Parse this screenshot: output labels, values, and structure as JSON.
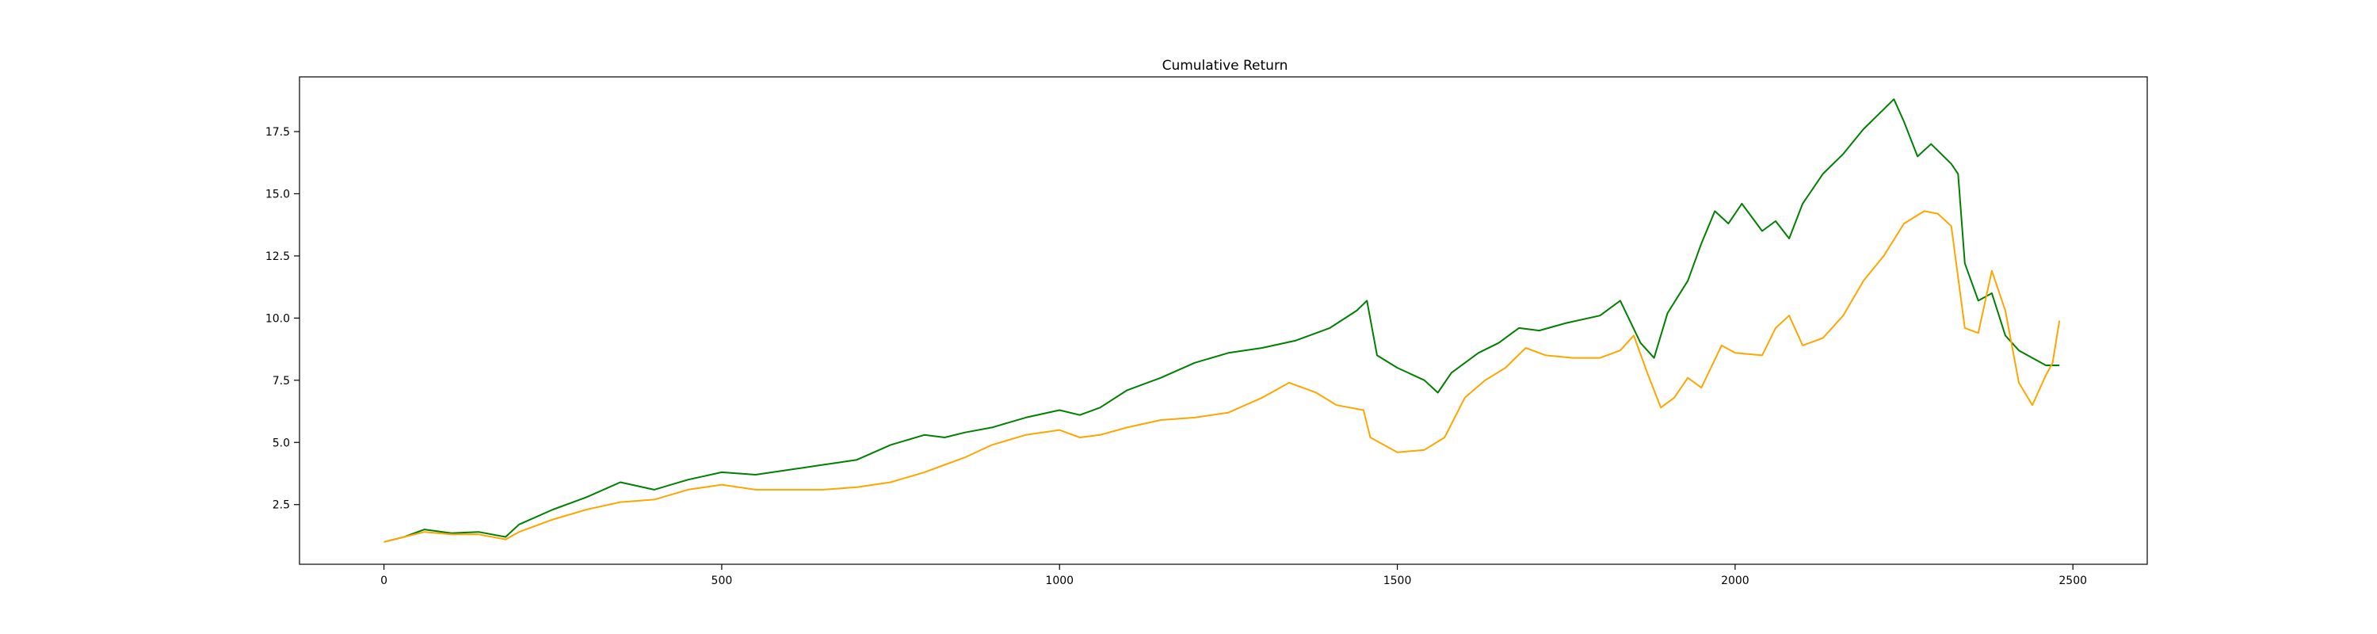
{
  "chart_data": {
    "type": "line",
    "title": "Cumulative Return",
    "xlabel": "",
    "ylabel": "",
    "xlim": [
      -125,
      2610
    ],
    "ylim": [
      0.1,
      19.7
    ],
    "xticks": [
      0,
      500,
      1000,
      1500,
      2000,
      2500
    ],
    "yticks": [
      2.5,
      5.0,
      7.5,
      10.0,
      12.5,
      15.0,
      17.5
    ],
    "ytick_labels": [
      "2.5",
      "5.0",
      "7.5",
      "10.0",
      "12.5",
      "15.0",
      "17.5"
    ],
    "grid": false,
    "legend": "none",
    "series": [
      {
        "color": "#008000",
        "points": [
          [
            0,
            1.0
          ],
          [
            30,
            1.2
          ],
          [
            60,
            1.5
          ],
          [
            100,
            1.35
          ],
          [
            140,
            1.4
          ],
          [
            180,
            1.2
          ],
          [
            200,
            1.7
          ],
          [
            250,
            2.3
          ],
          [
            300,
            2.8
          ],
          [
            350,
            3.4
          ],
          [
            400,
            3.1
          ],
          [
            450,
            3.5
          ],
          [
            500,
            3.8
          ],
          [
            550,
            3.7
          ],
          [
            600,
            3.9
          ],
          [
            650,
            4.1
          ],
          [
            700,
            4.3
          ],
          [
            750,
            4.9
          ],
          [
            800,
            5.3
          ],
          [
            830,
            5.2
          ],
          [
            860,
            5.4
          ],
          [
            900,
            5.6
          ],
          [
            950,
            6.0
          ],
          [
            1000,
            6.3
          ],
          [
            1030,
            6.1
          ],
          [
            1060,
            6.4
          ],
          [
            1100,
            7.1
          ],
          [
            1150,
            7.6
          ],
          [
            1200,
            8.2
          ],
          [
            1250,
            8.6
          ],
          [
            1300,
            8.8
          ],
          [
            1350,
            9.1
          ],
          [
            1400,
            9.6
          ],
          [
            1440,
            10.3
          ],
          [
            1455,
            10.7
          ],
          [
            1470,
            8.5
          ],
          [
            1500,
            8.0
          ],
          [
            1540,
            7.5
          ],
          [
            1560,
            7.0
          ],
          [
            1580,
            7.8
          ],
          [
            1620,
            8.6
          ],
          [
            1650,
            9.0
          ],
          [
            1680,
            9.6
          ],
          [
            1710,
            9.5
          ],
          [
            1750,
            9.8
          ],
          [
            1800,
            10.1
          ],
          [
            1830,
            10.7
          ],
          [
            1860,
            9.0
          ],
          [
            1880,
            8.4
          ],
          [
            1900,
            10.2
          ],
          [
            1930,
            11.5
          ],
          [
            1950,
            13.0
          ],
          [
            1970,
            14.3
          ],
          [
            1990,
            13.8
          ],
          [
            2010,
            14.6
          ],
          [
            2040,
            13.5
          ],
          [
            2060,
            13.9
          ],
          [
            2080,
            13.2
          ],
          [
            2100,
            14.6
          ],
          [
            2130,
            15.8
          ],
          [
            2160,
            16.6
          ],
          [
            2190,
            17.6
          ],
          [
            2220,
            18.4
          ],
          [
            2235,
            18.8
          ],
          [
            2250,
            17.9
          ],
          [
            2270,
            16.5
          ],
          [
            2290,
            17.0
          ],
          [
            2320,
            16.2
          ],
          [
            2330,
            15.8
          ],
          [
            2340,
            12.2
          ],
          [
            2360,
            10.7
          ],
          [
            2380,
            11.0
          ],
          [
            2400,
            9.3
          ],
          [
            2420,
            8.7
          ],
          [
            2440,
            8.4
          ],
          [
            2460,
            8.1
          ],
          [
            2480,
            8.1
          ]
        ]
      },
      {
        "color": "#ffa500",
        "points": [
          [
            0,
            1.0
          ],
          [
            30,
            1.2
          ],
          [
            60,
            1.4
          ],
          [
            100,
            1.3
          ],
          [
            140,
            1.3
          ],
          [
            180,
            1.1
          ],
          [
            200,
            1.4
          ],
          [
            250,
            1.9
          ],
          [
            300,
            2.3
          ],
          [
            350,
            2.6
          ],
          [
            400,
            2.7
          ],
          [
            450,
            3.1
          ],
          [
            500,
            3.3
          ],
          [
            550,
            3.1
          ],
          [
            600,
            3.1
          ],
          [
            650,
            3.1
          ],
          [
            700,
            3.2
          ],
          [
            750,
            3.4
          ],
          [
            800,
            3.8
          ],
          [
            830,
            4.1
          ],
          [
            860,
            4.4
          ],
          [
            900,
            4.9
          ],
          [
            950,
            5.3
          ],
          [
            1000,
            5.5
          ],
          [
            1030,
            5.2
          ],
          [
            1060,
            5.3
          ],
          [
            1100,
            5.6
          ],
          [
            1150,
            5.9
          ],
          [
            1200,
            6.0
          ],
          [
            1250,
            6.2
          ],
          [
            1300,
            6.8
          ],
          [
            1340,
            7.4
          ],
          [
            1380,
            7.0
          ],
          [
            1410,
            6.5
          ],
          [
            1450,
            6.3
          ],
          [
            1460,
            5.2
          ],
          [
            1500,
            4.6
          ],
          [
            1540,
            4.7
          ],
          [
            1570,
            5.2
          ],
          [
            1600,
            6.8
          ],
          [
            1630,
            7.5
          ],
          [
            1660,
            8.0
          ],
          [
            1690,
            8.8
          ],
          [
            1720,
            8.5
          ],
          [
            1760,
            8.4
          ],
          [
            1800,
            8.4
          ],
          [
            1830,
            8.7
          ],
          [
            1850,
            9.3
          ],
          [
            1870,
            7.8
          ],
          [
            1890,
            6.4
          ],
          [
            1910,
            6.8
          ],
          [
            1930,
            7.6
          ],
          [
            1950,
            7.2
          ],
          [
            1980,
            8.9
          ],
          [
            2000,
            8.6
          ],
          [
            2040,
            8.5
          ],
          [
            2060,
            9.6
          ],
          [
            2080,
            10.1
          ],
          [
            2100,
            8.9
          ],
          [
            2130,
            9.2
          ],
          [
            2160,
            10.1
          ],
          [
            2190,
            11.5
          ],
          [
            2220,
            12.5
          ],
          [
            2250,
            13.8
          ],
          [
            2280,
            14.3
          ],
          [
            2300,
            14.2
          ],
          [
            2320,
            13.7
          ],
          [
            2340,
            9.6
          ],
          [
            2360,
            9.4
          ],
          [
            2380,
            11.9
          ],
          [
            2400,
            10.3
          ],
          [
            2420,
            7.4
          ],
          [
            2440,
            6.5
          ],
          [
            2460,
            7.7
          ],
          [
            2470,
            8.2
          ],
          [
            2480,
            9.9
          ]
        ]
      }
    ]
  }
}
